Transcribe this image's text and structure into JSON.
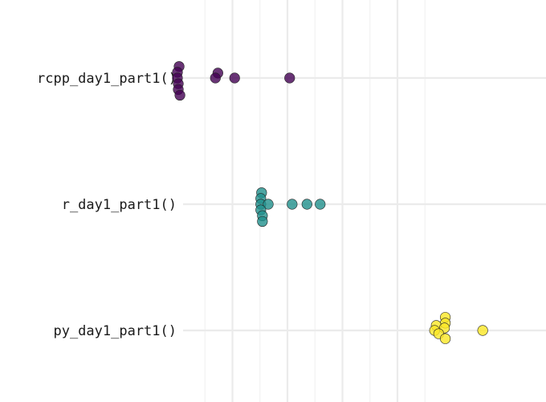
{
  "chart_data": {
    "type": "scatter",
    "title": "",
    "xlabel": "",
    "ylabel": "",
    "categories": [
      "rcpp_day1_part1()",
      "r_day1_part1()",
      "py_day1_part1()"
    ],
    "x_range": [
      0,
      9.3
    ],
    "x_gridlines_major": [
      2,
      4,
      6,
      8
    ],
    "x_gridlines_minor": [
      1,
      3,
      5,
      7,
      9
    ],
    "x_tick_labels_shown": false,
    "grid": true,
    "legend": "none",
    "series": [
      {
        "category": "rcpp_day1_part1()",
        "color": "#440154",
        "points": [
          {
            "x": 0.06,
            "offset": 1.4
          },
          {
            "x": 0.0,
            "offset": 0.7
          },
          {
            "x": 0.0,
            "offset": 0.0
          },
          {
            "x": 0.03,
            "offset": -0.7
          },
          {
            "x": 0.03,
            "offset": -1.4
          },
          {
            "x": 0.09,
            "offset": -2.1
          },
          {
            "x": 1.47,
            "offset": 0.6
          },
          {
            "x": 1.38,
            "offset": 0.0
          },
          {
            "x": 2.08,
            "offset": 0.0
          },
          {
            "x": 4.08,
            "offset": 0.0
          }
        ]
      },
      {
        "category": "r_day1_part1()",
        "color": "#21908C",
        "points": [
          {
            "x": 3.06,
            "offset": 1.4
          },
          {
            "x": 3.03,
            "offset": 0.7
          },
          {
            "x": 3.03,
            "offset": 0.0
          },
          {
            "x": 3.3,
            "offset": 0.0
          },
          {
            "x": 3.03,
            "offset": -0.7
          },
          {
            "x": 3.09,
            "offset": -1.4
          },
          {
            "x": 3.09,
            "offset": -2.1
          },
          {
            "x": 4.17,
            "offset": 0.0
          },
          {
            "x": 4.71,
            "offset": 0.0
          },
          {
            "x": 5.19,
            "offset": 0.0
          }
        ]
      },
      {
        "category": "py_day1_part1()",
        "color": "#FDE725",
        "points": [
          {
            "x": 9.74,
            "offset": 1.6
          },
          {
            "x": 9.74,
            "offset": 0.9
          },
          {
            "x": 9.41,
            "offset": 0.6
          },
          {
            "x": 9.71,
            "offset": 0.3
          },
          {
            "x": 9.35,
            "offset": 0.0
          },
          {
            "x": 9.5,
            "offset": -0.4
          },
          {
            "x": 9.74,
            "offset": -1.0
          },
          {
            "x": 11.1,
            "offset": 0.0
          }
        ]
      }
    ]
  }
}
